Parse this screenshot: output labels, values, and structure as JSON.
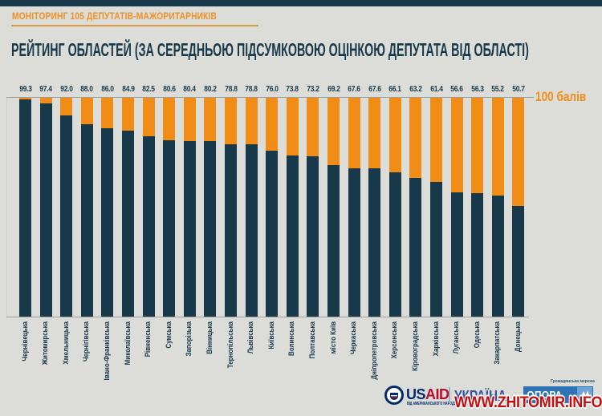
{
  "colors": {
    "background": "#dcddd9",
    "dark": "#17394a",
    "orange": "#f18c16",
    "grid": "#9fa09e",
    "watermark_red": "#c40d0d",
    "usaid_blue": "#002a6c",
    "usaid_red": "#ba0c2f",
    "ukraine_blue": "#33569b",
    "opora_blue": "#2e74b5"
  },
  "header": {
    "kicker": "МОНІТОРИНГ 105 ДЕПУТАТІВ-МАЖОРИТАРНИКІВ",
    "title": "РЕЙТИНГ ОБЛАСТЕЙ (ЗА СЕРЕДНЬОЮ ПІДСУМКОВОЮ ОЦІНКОЮ ДЕПУТАТА ВІД ОБЛАСТІ)"
  },
  "chart_data": {
    "type": "bar",
    "stacked_to": 100,
    "ylim": [
      0,
      100
    ],
    "max_line_label": "100 балів",
    "bar_color": "#17394a",
    "remainder_color": "#f18c16",
    "value_label_decimals": 1,
    "categories": [
      "Чернівецька",
      "Житомирська",
      "Хмельницька",
      "Чернігівська",
      "Івано-Франківська",
      "Миколаївська",
      "Рівненська",
      "Сумська",
      "Запорізька",
      "Вінницька",
      "Тернопільська",
      "Львівська",
      "Київська",
      "Волинська",
      "Полтавська",
      "місто Київ",
      "Черкаська",
      "Дніпропетровська",
      "Херсонська",
      "Кіровоградська",
      "Харківська",
      "Луганська",
      "Одеська",
      "Закарпатська",
      "Донецька"
    ],
    "values": [
      99.3,
      97.4,
      92.0,
      88.0,
      86.0,
      84.9,
      82.5,
      80.6,
      80.4,
      80.2,
      78.8,
      78.8,
      76.0,
      73.8,
      73.2,
      69.2,
      67.6,
      67.6,
      66.1,
      63.2,
      61.4,
      56.6,
      56.3,
      55.2,
      50.7
    ]
  },
  "footer": {
    "usaid": {
      "part1": "US",
      "part2": "AID",
      "tagline": "ВІД АМЕРИКАНСЬКОГО НАРОДУ"
    },
    "ukraine_label": "УКРАЇНА",
    "opora": {
      "network_label": "Громадянська мережа",
      "name": "ОПОРА"
    },
    "watermark": "WWW.ZHITOMIR.INFO"
  }
}
